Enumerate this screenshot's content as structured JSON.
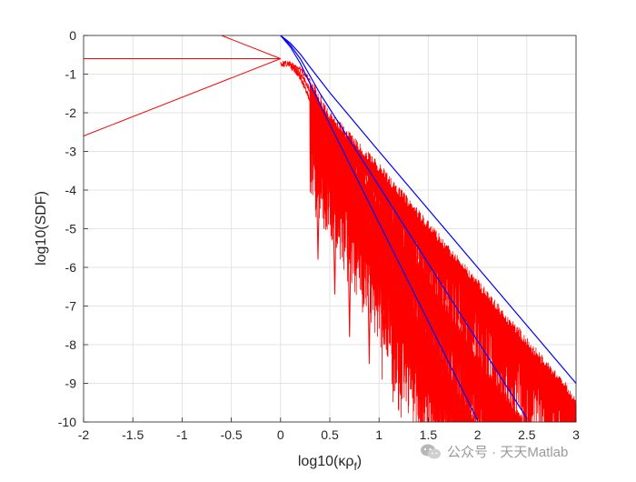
{
  "chart_data": {
    "type": "line",
    "title": "",
    "xlabel": "log10(κρ",
    "xlabel_sub": "f",
    "xlabel_close": ")",
    "ylabel": "log10(SDF)",
    "xlim": [
      -2,
      3
    ],
    "ylim": [
      -10,
      0
    ],
    "x_ticks": [
      -2,
      -1.5,
      -1,
      -0.5,
      0,
      0.5,
      1,
      1.5,
      2,
      2.5,
      3
    ],
    "x_tick_labels": [
      "-2",
      "-1.5",
      "-1",
      "-0.5",
      "0",
      "0.5",
      "1",
      "1.5",
      "2",
      "2.5",
      "3"
    ],
    "y_ticks": [
      0,
      -1,
      -2,
      -3,
      -4,
      -5,
      -6,
      -7,
      -8,
      -9,
      -10
    ],
    "y_tick_labels": [
      "0",
      "-1",
      "-2",
      "-3",
      "-4",
      "-5",
      "-6",
      "-7",
      "-8",
      "-9",
      "-10"
    ],
    "grid": true,
    "series_colors": {
      "spectrum": "#ff0000",
      "envelope": "#0000ff"
    },
    "low_freq_lines": [
      {
        "x": [
          -2,
          0
        ],
        "y": [
          -0.6,
          -0.6
        ]
      },
      {
        "x": [
          -2,
          0
        ],
        "y": [
          -2.6,
          -0.6
        ]
      },
      {
        "x": [
          -0.6,
          0
        ],
        "y": [
          0,
          -0.6
        ]
      }
    ],
    "envelopes": [
      {
        "x": [
          0,
          0.1,
          0.2,
          0.3,
          0.4,
          0.5,
          1,
          2,
          3
        ],
        "y": [
          0,
          -0.2,
          -0.48,
          -0.82,
          -1.15,
          -1.48,
          -3,
          -6,
          -9
        ]
      },
      {
        "x": [
          0,
          0.1,
          0.2,
          0.3,
          0.4,
          0.5,
          1,
          2,
          2.5
        ],
        "y": [
          0,
          -0.25,
          -0.6,
          -1.05,
          -1.5,
          -1.9,
          -3.9,
          -7.9,
          -9.9
        ]
      },
      {
        "x": [
          0,
          0.1,
          0.2,
          0.3,
          0.4,
          0.5,
          1,
          1.5,
          2
        ],
        "y": [
          0,
          -0.3,
          -0.72,
          -1.25,
          -1.78,
          -2.3,
          -4.85,
          -7.4,
          -9.95
        ]
      }
    ],
    "spectrum_peaks": [
      {
        "x": [
          0,
          0.1,
          0.2,
          0.3,
          0.35,
          0.4,
          0.5,
          1,
          2,
          3
        ],
        "y": [
          -0.6,
          -0.62,
          -0.75,
          -1.05,
          -1.3,
          -1.55,
          -1.95,
          -3.3,
          -6.3,
          -9.3
        ]
      },
      {
        "x": [
          0.1,
          0.2,
          0.3,
          0.4,
          0.5,
          1,
          2,
          2.5
        ],
        "y": [
          -0.64,
          -0.85,
          -1.3,
          -1.85,
          -2.3,
          -4.2,
          -8.2,
          -10
        ]
      },
      {
        "x": [
          0.1,
          0.2,
          0.3,
          0.4,
          0.5,
          1,
          1.5,
          2
        ],
        "y": [
          -0.66,
          -0.95,
          -1.55,
          -2.15,
          -2.7,
          -5.2,
          -7.7,
          -10
        ]
      }
    ],
    "deep_dips": [
      {
        "x": 0.38,
        "y": -5.8
      },
      {
        "x": 0.55,
        "y": -6.7
      },
      {
        "x": 0.7,
        "y": -7.8
      },
      {
        "x": 0.9,
        "y": -8.5
      },
      {
        "x": 1.05,
        "y": -8.0
      },
      {
        "x": 1.2,
        "y": -8.9
      },
      {
        "x": 1.35,
        "y": -9.5
      },
      {
        "x": 1.55,
        "y": -10
      }
    ]
  },
  "watermark": {
    "text": "公众号 · 天天Matlab",
    "icon": "wechat-icon"
  }
}
